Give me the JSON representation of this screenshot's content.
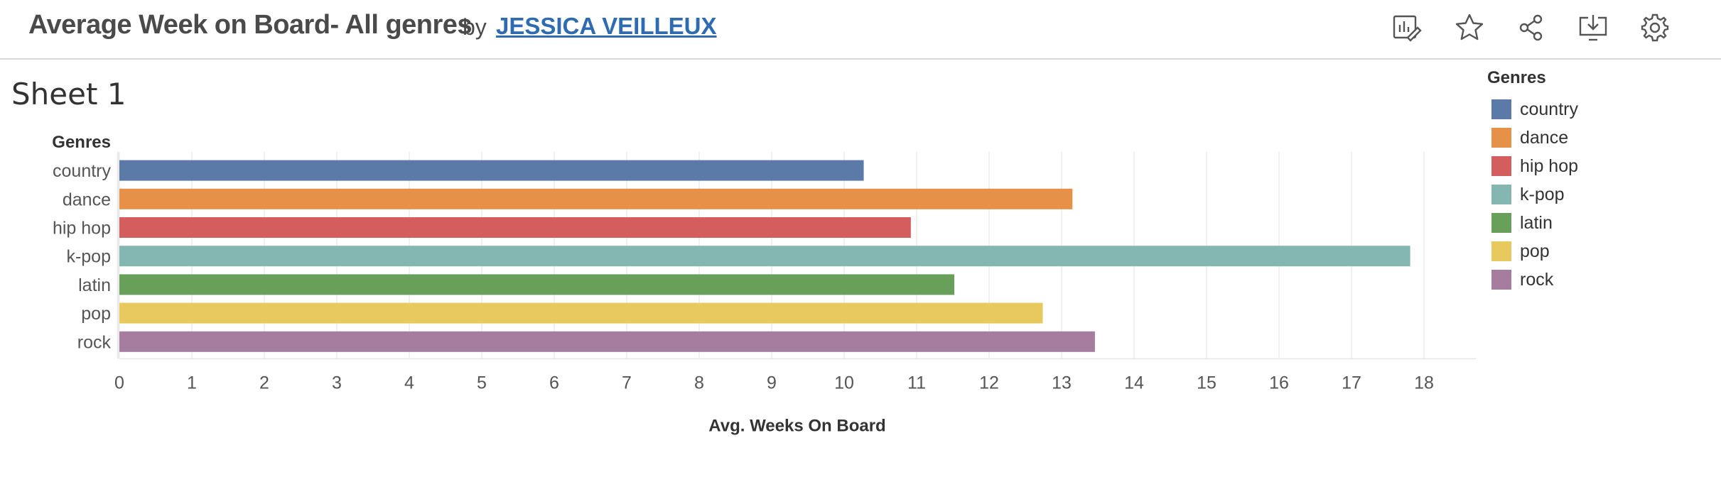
{
  "header": {
    "title": "Average Week on Board- All genres",
    "by": "by",
    "author": "JESSICA VEILLEUX",
    "icons": [
      "edit-metrics-icon",
      "favorite-star-icon",
      "share-icon",
      "download-icon",
      "settings-gear-icon"
    ]
  },
  "sheet": {
    "title": "Sheet 1"
  },
  "legend": {
    "title": "Genres",
    "items": [
      {
        "label": "country",
        "color": "#5b7aa8"
      },
      {
        "label": "dance",
        "color": "#e69147"
      },
      {
        "label": "hip hop",
        "color": "#d45e5e"
      },
      {
        "label": "k-pop",
        "color": "#85b7b2"
      },
      {
        "label": "latin",
        "color": "#69a059"
      },
      {
        "label": "pop",
        "color": "#e8c95e"
      },
      {
        "label": "rock",
        "color": "#a77d9f"
      }
    ]
  },
  "chart_data": {
    "type": "bar",
    "orientation": "horizontal",
    "categories": [
      "country",
      "dance",
      "hip hop",
      "k-pop",
      "latin",
      "pop",
      "rock"
    ],
    "values": [
      10.27,
      13.15,
      10.92,
      17.81,
      11.52,
      12.74,
      13.46
    ],
    "colors": [
      "#5b7aa8",
      "#e69147",
      "#d45e5e",
      "#85b7b2",
      "#69a059",
      "#e8c95e",
      "#a77d9f"
    ],
    "ylabel": "Genres",
    "xlabel": "Avg. Weeks On Board",
    "xlim": [
      0,
      18
    ],
    "xticks": [
      0,
      1,
      2,
      3,
      4,
      5,
      6,
      7,
      8,
      9,
      10,
      11,
      12,
      13,
      14,
      15,
      16,
      17,
      18
    ],
    "grid": "vertical",
    "legend_position": "right"
  }
}
